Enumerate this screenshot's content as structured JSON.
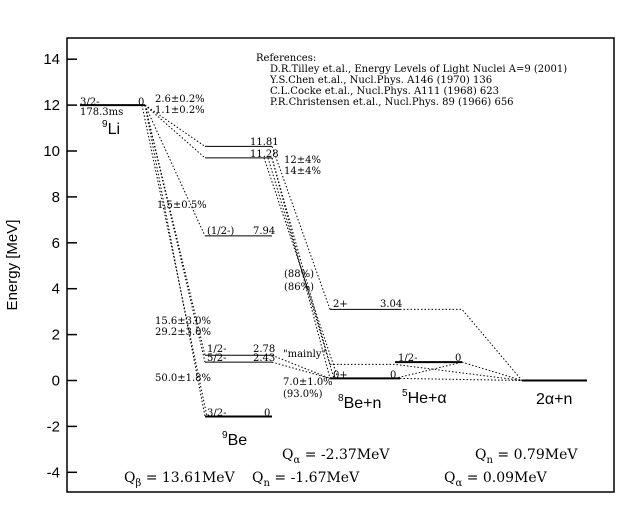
{
  "axis": {
    "ylabel": "Energy [MeV]",
    "ylim": [
      -5,
      15
    ],
    "ticks": [
      14,
      12,
      10,
      8,
      6,
      4,
      2,
      0,
      -2,
      -4
    ]
  },
  "references": [
    "References:",
    "D.R.Tilley et.al., Energy Levels of Light Nuclei A=9 (2001)",
    "Y.S.Chen et.al., Nucl.Phys. A146 (1970) 136",
    "C.L.Cocke et.al., Nucl.Phys. A111 (1968) 623",
    "P.R.Christensen et.al., Nucl.Phys. 89 (1966) 656"
  ],
  "nuclei": {
    "li9": {
      "name": "Li",
      "mass": "9",
      "spin": "3/2-",
      "energy_label": "0",
      "halflife": "178.3ms",
      "energy": 12.0
    },
    "be9": {
      "name": "Be",
      "mass": "9"
    },
    "be8n": {
      "mass": "8",
      "name": "Be+n"
    },
    "he5a": {
      "mass": "5",
      "name": "He+α"
    },
    "aan": {
      "name": "2α+n"
    }
  },
  "levels": {
    "be9_1181": {
      "energy": 10.2,
      "energy_label": "11.81"
    },
    "be9_1128": {
      "energy": 9.7,
      "energy_label": "11.28"
    },
    "be9_794": {
      "energy": 6.3,
      "energy_label": "7.94",
      "spin": "(1/2-)"
    },
    "be9_278": {
      "energy": 1.1,
      "energy_label": "2.78",
      "spin": "1/2-"
    },
    "be9_243": {
      "energy": 0.8,
      "energy_label": "2.43",
      "spin": "5/2-"
    },
    "be9_gs": {
      "energy": -1.57,
      "energy_label": "0",
      "spin": "3/2-"
    },
    "be8_2p": {
      "energy": 3.1,
      "energy_label": "3.04",
      "spin": "2+"
    },
    "be8_gs": {
      "energy": 0.09,
      "energy_label": "0",
      "spin": "0+"
    },
    "he5_gs": {
      "energy": 0.8,
      "energy_label": "0",
      "spin": "1/2-"
    },
    "aan_gs": {
      "energy": 0.0
    }
  },
  "branches": {
    "b_1181": "2.6±0.2%",
    "b_1128": "1.1±0.2%",
    "b_794": "1.5±0.5%",
    "b_278": "15.6±3.0%",
    "b_243": "29.2±3.0%",
    "b_gs": "50.0±1.8%",
    "a_12": "12±4%",
    "a_14": "14±4%",
    "a_88": "(88%)",
    "a_86": "(86%)",
    "a_70": "7.0±1.0%",
    "a_93": "(93.0%)",
    "mainly": "\"mainly\""
  },
  "qvalues": {
    "qbeta": {
      "sym": "Q",
      "sub": "β",
      "value": " = 13.61MeV"
    },
    "qn1": {
      "sym": "Q",
      "sub": "n",
      "value": " = -1.67MeV"
    },
    "qalpha1": {
      "sym": "Q",
      "sub": "α",
      "value": " = -2.37MeV"
    },
    "qn2": {
      "sym": "Q",
      "sub": "n",
      "value": " = 0.79MeV"
    },
    "qalpha2": {
      "sym": "Q",
      "sub": "α",
      "value": " = 0.09MeV"
    }
  }
}
